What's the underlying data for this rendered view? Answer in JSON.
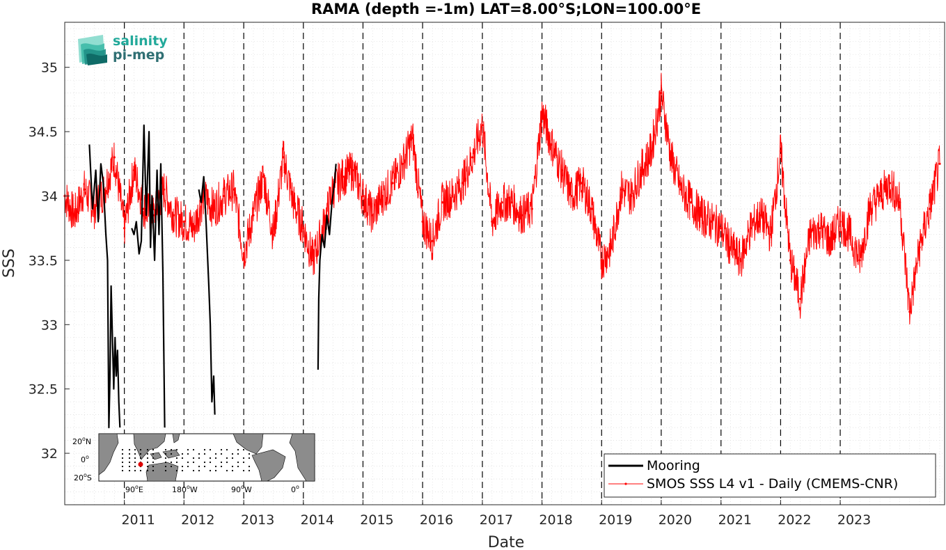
{
  "chart_data": {
    "type": "line",
    "title": "RAMA (depth =-1m) LAT=8.00°S;LON=100.00°E",
    "xlabel": "Date",
    "ylabel": "SSS",
    "xlim": [
      "2010-01-01",
      "2024-10-01"
    ],
    "ylim": [
      31.6,
      35.35
    ],
    "x_ticks": [
      "2011",
      "2012",
      "2013",
      "2014",
      "2015",
      "2016",
      "2017",
      "2018",
      "2019",
      "2020",
      "2021",
      "2022",
      "2023"
    ],
    "y_ticks": [
      32,
      32.5,
      33,
      33.5,
      34,
      34.5,
      35
    ],
    "grid": true,
    "year_markers": "dashed vertical line at each Jan 1",
    "legend_position": "bottom-right",
    "series": [
      {
        "name": "Mooring",
        "color": "#000000",
        "segments": [
          {
            "x": [
              "2010-06-01",
              "2010-06-20",
              "2010-07-10",
              "2010-07-25",
              "2010-08-10",
              "2010-08-25",
              "2010-09-10",
              "2010-09-20",
              "2010-09-28",
              "2010-10-05",
              "2010-10-12",
              "2010-10-20",
              "2010-10-28",
              "2010-11-05",
              "2010-11-12",
              "2010-11-20",
              "2010-11-28",
              "2010-12-05"
            ],
            "y": [
              34.4,
              33.9,
              34.2,
              33.8,
              34.25,
              34.1,
              33.7,
              33.5,
              32.2,
              32.6,
              33.3,
              32.9,
              32.5,
              32.9,
              32.6,
              32.8,
              32.4,
              32.2
            ]
          },
          {
            "x": [
              "2011-02-15",
              "2011-03-01",
              "2011-03-15",
              "2011-04-01",
              "2011-04-15",
              "2011-05-01",
              "2011-05-15",
              "2011-06-01",
              "2011-06-10",
              "2011-06-20",
              "2011-07-05",
              "2011-07-20",
              "2011-08-01",
              "2011-08-12",
              "2011-08-25",
              "2011-09-05"
            ],
            "y": [
              33.75,
              33.7,
              33.8,
              33.55,
              33.65,
              34.55,
              33.85,
              34.5,
              33.6,
              34.0,
              33.5,
              34.2,
              33.7,
              34.25,
              33.4,
              32.2
            ]
          },
          {
            "x": [
              "2012-04-01",
              "2012-04-15",
              "2012-05-01",
              "2012-05-15",
              "2012-06-01",
              "2012-06-10",
              "2012-06-20",
              "2012-07-01",
              "2012-07-08"
            ],
            "y": [
              34.05,
              33.95,
              34.15,
              33.8,
              33.3,
              33.0,
              32.4,
              32.6,
              32.3
            ]
          },
          {
            "x": [
              "2014-04-01",
              "2014-04-05",
              "2014-04-12",
              "2014-04-25",
              "2014-05-10",
              "2014-05-25",
              "2014-06-10",
              "2014-06-25",
              "2014-07-10",
              "2014-07-20"
            ],
            "y": [
              32.65,
              33.2,
              33.5,
              33.7,
              33.6,
              33.85,
              33.7,
              33.95,
              34.1,
              34.25
            ]
          }
        ]
      },
      {
        "name": "SMOS SSS L4 v1 - Daily (CMEMS-CNR)",
        "color": "#ff0000",
        "x": [
          "2010-01-01",
          "2010-03-01",
          "2010-05-01",
          "2010-07-01",
          "2010-09-01",
          "2010-11-01",
          "2011-01-01",
          "2011-03-01",
          "2011-05-01",
          "2011-07-01",
          "2011-09-01",
          "2011-11-01",
          "2012-01-01",
          "2012-03-01",
          "2012-05-01",
          "2012-07-01",
          "2012-09-01",
          "2012-11-01",
          "2013-01-01",
          "2013-03-01",
          "2013-05-01",
          "2013-07-01",
          "2013-09-01",
          "2013-11-01",
          "2014-01-01",
          "2014-03-01",
          "2014-05-01",
          "2014-07-01",
          "2014-09-01",
          "2014-11-01",
          "2015-01-01",
          "2015-03-01",
          "2015-05-01",
          "2015-07-01",
          "2015-09-01",
          "2015-11-01",
          "2016-01-01",
          "2016-03-01",
          "2016-05-01",
          "2016-07-01",
          "2016-09-01",
          "2016-11-01",
          "2017-01-01",
          "2017-03-01",
          "2017-05-01",
          "2017-07-01",
          "2017-09-01",
          "2017-11-01",
          "2018-01-01",
          "2018-03-01",
          "2018-05-01",
          "2018-07-01",
          "2018-09-01",
          "2018-11-01",
          "2019-01-01",
          "2019-03-01",
          "2019-05-01",
          "2019-07-01",
          "2019-09-01",
          "2019-11-01",
          "2020-01-01",
          "2020-03-01",
          "2020-05-01",
          "2020-07-01",
          "2020-09-01",
          "2020-11-01",
          "2021-01-01",
          "2021-03-01",
          "2021-05-01",
          "2021-07-01",
          "2021-09-01",
          "2021-11-01",
          "2022-01-01",
          "2022-03-01",
          "2022-05-01",
          "2022-07-01",
          "2022-09-01",
          "2022-11-01",
          "2023-01-01",
          "2023-03-01",
          "2023-05-01",
          "2023-07-01",
          "2023-09-01",
          "2023-11-01",
          "2024-01-01",
          "2024-03-01",
          "2024-05-01",
          "2024-07-01",
          "2024-09-01"
        ],
        "y": [
          34.0,
          33.85,
          34.05,
          33.9,
          34.05,
          34.3,
          33.75,
          34.2,
          33.9,
          33.85,
          34.05,
          33.85,
          33.8,
          33.75,
          34.0,
          33.9,
          34.0,
          34.05,
          33.55,
          33.85,
          34.15,
          33.7,
          34.3,
          33.95,
          33.75,
          33.5,
          33.75,
          34.05,
          34.15,
          34.2,
          34.0,
          33.85,
          34.0,
          34.1,
          34.25,
          34.45,
          33.8,
          33.65,
          33.95,
          34.0,
          34.1,
          34.3,
          34.55,
          33.8,
          33.95,
          33.95,
          33.85,
          33.9,
          34.65,
          34.4,
          34.2,
          34.0,
          34.1,
          33.9,
          33.5,
          33.6,
          34.05,
          34.0,
          34.2,
          34.35,
          34.8,
          34.3,
          34.05,
          33.95,
          33.85,
          33.8,
          33.75,
          33.6,
          33.5,
          33.75,
          33.85,
          33.7,
          34.35,
          33.5,
          33.2,
          33.7,
          33.75,
          33.65,
          33.8,
          33.7,
          33.5,
          33.9,
          34.0,
          34.1,
          33.95,
          33.1,
          33.6,
          33.9,
          34.25
        ]
      }
    ]
  },
  "inset_map": {
    "lat_labels": [
      "20",
      "0",
      "20"
    ],
    "lat_suffixes": [
      "N",
      "",
      "S"
    ],
    "lon_labels": [
      "90",
      "180",
      "90",
      "0"
    ],
    "lon_suffixes": [
      "E",
      "W",
      "W",
      ""
    ],
    "ocean_color": "#ffffff",
    "land_color": "#8c8c8c",
    "highlight_color": "#e00000"
  },
  "logo": {
    "line1": "salinity",
    "line2": "pi-mep",
    "color1": "#22a99a",
    "color2": "#2f6f73"
  }
}
